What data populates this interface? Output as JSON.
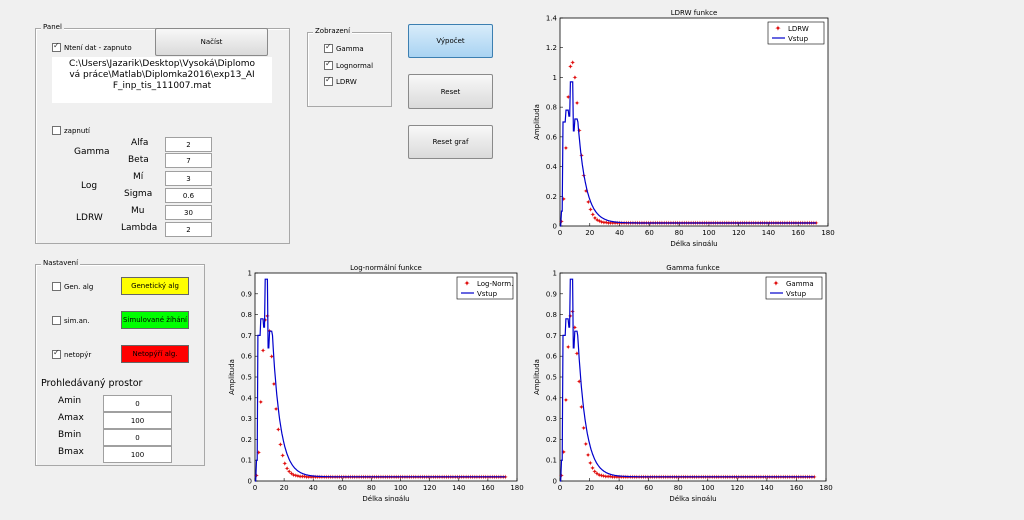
{
  "panel": {
    "title": "Panel",
    "load_checkbox_label": "Ntení dat - zapnuto",
    "load_button": "Načíst",
    "path": "C:\\Users\\Jazarik\\Desktop\\Vysoká\\Diplomová práce\\Matlab\\Diplomka2016\\exp13_AIF_inp_tis_111007.mat",
    "enable_checkbox_label": "zapnutí",
    "groups": {
      "gamma": "Gamma",
      "log": "Log",
      "ldrw": "LDRW"
    },
    "params": [
      {
        "label": "Alfa",
        "value": "2"
      },
      {
        "label": "Beta",
        "value": "7"
      },
      {
        "label": "Mí",
        "value": "3"
      },
      {
        "label": "Sigma",
        "value": "0.6"
      },
      {
        "label": "Mu",
        "value": "30"
      },
      {
        "label": "Lambda",
        "value": "2"
      }
    ]
  },
  "zobrazeni": {
    "title": "Zobrazení",
    "items": [
      "Gamma",
      "Lognormal",
      "LDRW"
    ]
  },
  "buttons": {
    "compute": "Výpočet",
    "reset": "Reset",
    "reset_graph": "Reset graf"
  },
  "nastaveni": {
    "title": "Nastavení",
    "algs": [
      {
        "checkbox": "Gen. alg",
        "button": "Genetický alg",
        "color": "#ffff00",
        "checked": false
      },
      {
        "checkbox": "sim.an.",
        "button": "Simulované žíhání",
        "color": "#00ff00",
        "checked": false
      },
      {
        "checkbox": "netopýr",
        "button": "Netopýří alg.",
        "color": "#ff0000",
        "checked": true
      }
    ],
    "space_title": "Prohledávaný prostor",
    "space": [
      {
        "label": "Amin",
        "value": "0"
      },
      {
        "label": "Amax",
        "value": "100"
      },
      {
        "label": "Bmin",
        "value": "0"
      },
      {
        "label": "Bmax",
        "value": "100"
      }
    ]
  },
  "chart_data": [
    {
      "type": "scatter",
      "title": "LDRW funkce",
      "xlabel": "Délka singálu",
      "ylabel": "Amplituda",
      "xlim": [
        0,
        180
      ],
      "ylim": [
        0,
        1.4
      ],
      "xticks": [
        0,
        20,
        40,
        60,
        80,
        100,
        120,
        140,
        160,
        180
      ],
      "yticks": [
        0,
        0.2,
        0.4,
        0.6,
        0.8,
        1,
        1.2,
        1.4
      ],
      "legend": [
        "LDRW",
        "Vstup"
      ],
      "legend_position": "top-right",
      "peak": 1.09
    },
    {
      "type": "scatter",
      "title": "Log-normální funkce",
      "xlabel": "Délka singálu",
      "ylabel": "Amplituda",
      "xlim": [
        0,
        180
      ],
      "ylim": [
        0,
        1
      ],
      "xticks": [
        0,
        20,
        40,
        60,
        80,
        100,
        120,
        140,
        160,
        180
      ],
      "yticks": [
        0,
        0.1,
        0.2,
        0.3,
        0.4,
        0.5,
        0.6,
        0.7,
        0.8,
        0.9,
        1
      ],
      "legend": [
        "Log-Norm.",
        "Vstup"
      ],
      "legend_position": "top-right",
      "peak": 0.78
    },
    {
      "type": "scatter",
      "title": "Gamma funkce",
      "xlabel": "Délka singálu",
      "ylabel": "Amplituda",
      "xlim": [
        0,
        180
      ],
      "ylim": [
        0,
        1
      ],
      "xticks": [
        0,
        20,
        40,
        60,
        80,
        100,
        120,
        140,
        160,
        180
      ],
      "yticks": [
        0,
        0.1,
        0.2,
        0.3,
        0.4,
        0.5,
        0.6,
        0.7,
        0.8,
        0.9,
        1
      ],
      "legend": [
        "Gamma",
        "Vstup"
      ],
      "legend_position": "top-right",
      "peak": 0.8
    }
  ]
}
